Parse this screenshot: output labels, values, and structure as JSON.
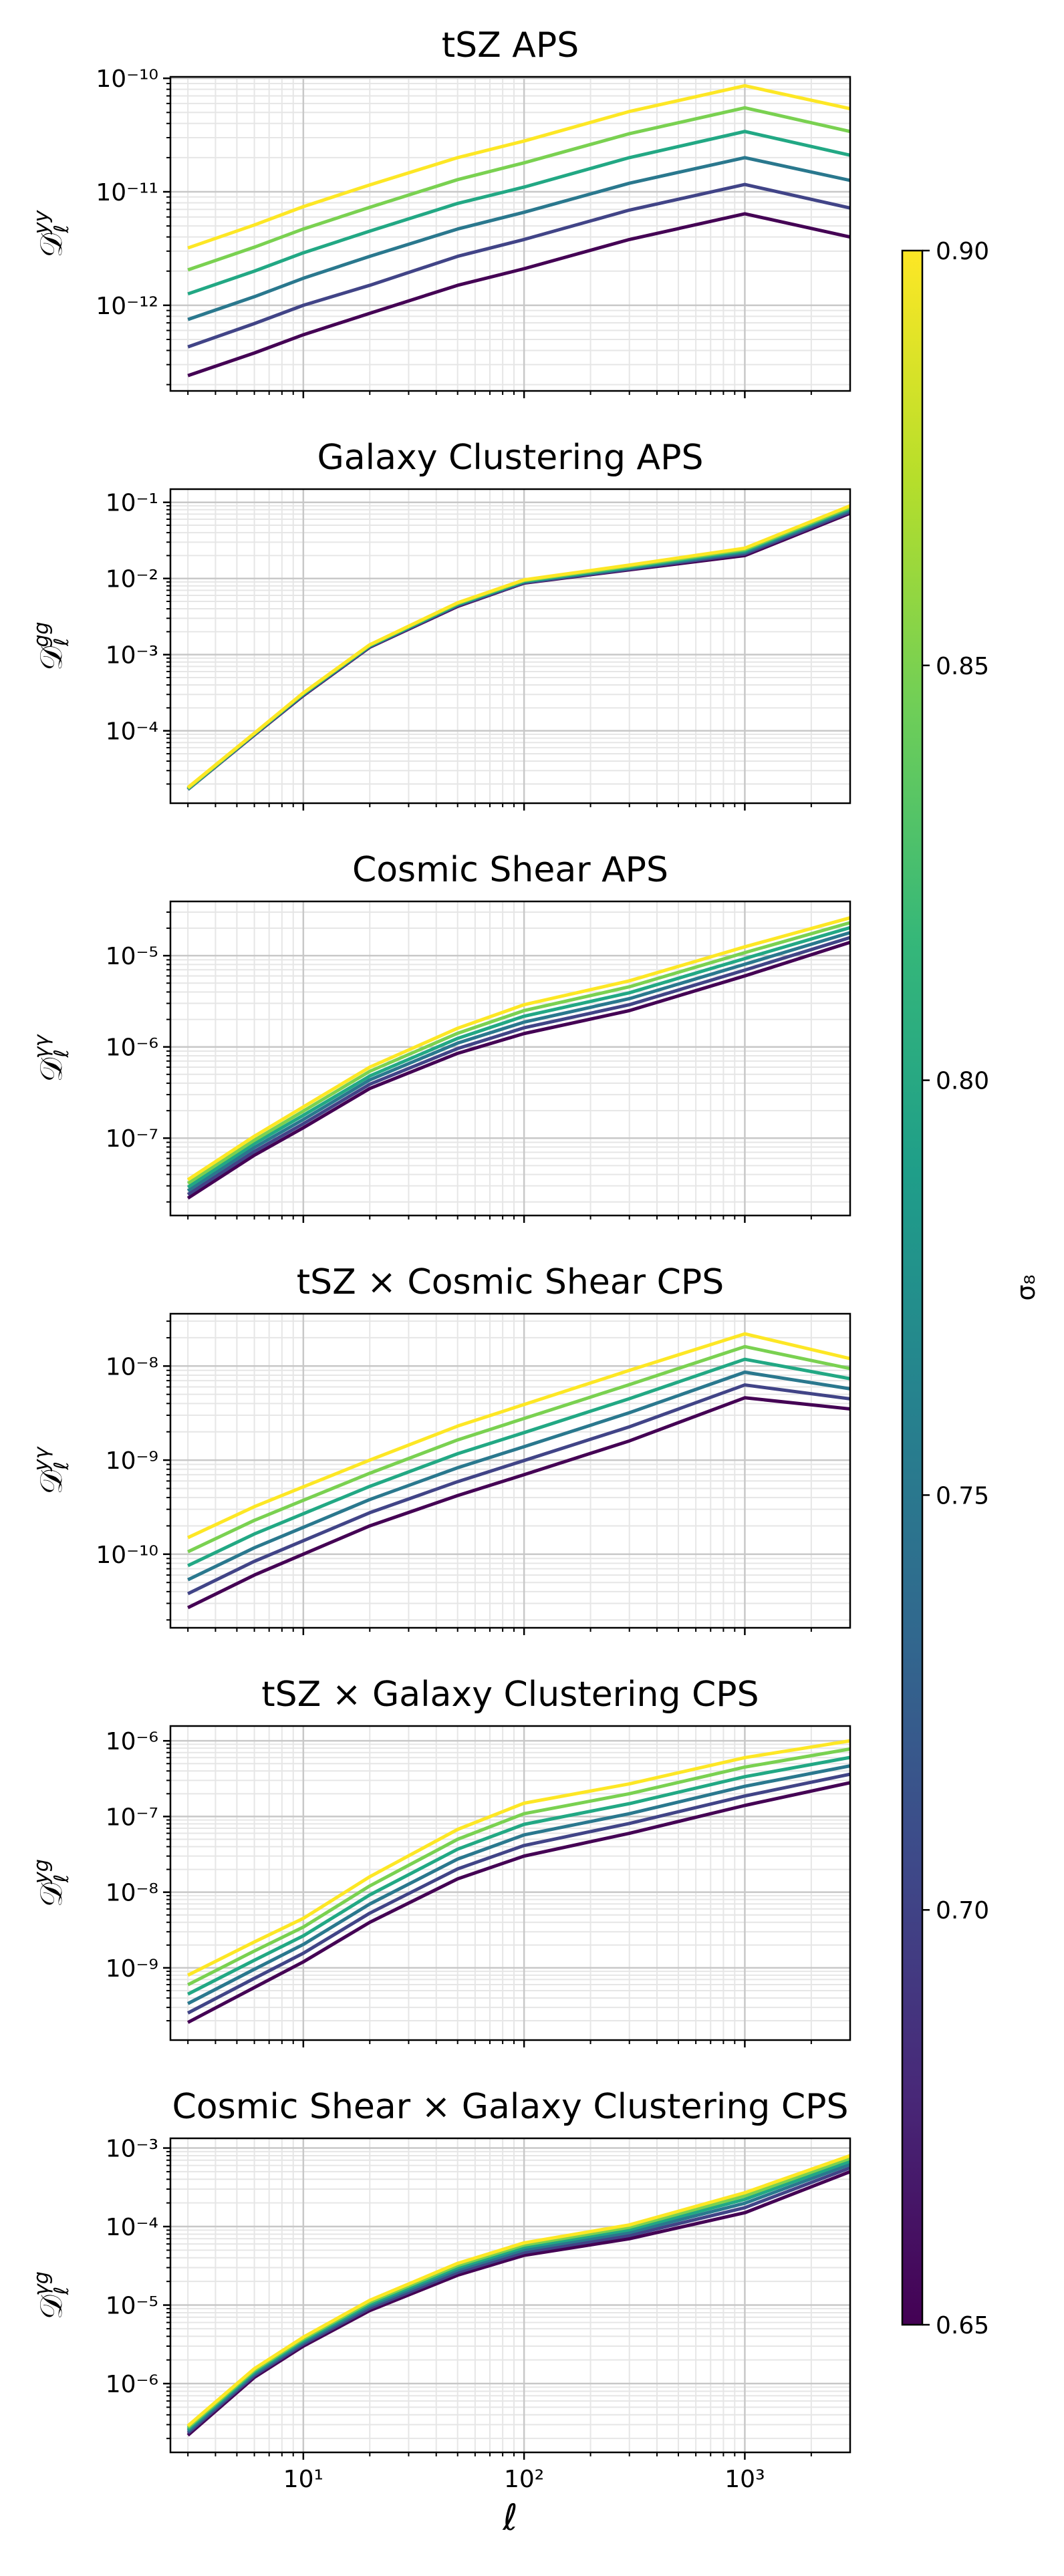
{
  "chart_data": [
    {
      "type": "line",
      "title": "tSZ APS",
      "ylabel": {
        "symbol": "𝒟",
        "sub": "ℓ",
        "sup": "yy"
      },
      "xscale": "log",
      "yscale": "log",
      "grid": true,
      "x": [
        3,
        6,
        10,
        20,
        50,
        100,
        300,
        1000,
        3000
      ],
      "xlim": [
        2.5,
        3000
      ],
      "xticks": [
        10,
        100,
        1000
      ],
      "ylim": [
        1.76e-13,
        1.03e-10
      ],
      "yticks": [
        {
          "value": 1e-12,
          "label": "10⁻¹²"
        },
        {
          "value": 1e-11,
          "label": "10⁻¹¹"
        },
        {
          "value": 1e-10,
          "label": "10⁻¹⁰"
        }
      ],
      "series": [
        {
          "color": "#440154",
          "values": [
            2.4e-13,
            3.8e-13,
            5.5e-13,
            8.5e-13,
            1.5e-12,
            2.1e-12,
            3.8e-12,
            6.4e-12,
            4e-12
          ]
        },
        {
          "color": "#414487",
          "values": [
            4.3e-13,
            6.9e-13,
            1e-12,
            1.5e-12,
            2.7e-12,
            3.8e-12,
            6.9e-12,
            1.16e-11,
            7.2e-12
          ]
        },
        {
          "color": "#2a788e",
          "values": [
            7.5e-13,
            1.19e-12,
            1.73e-12,
            2.7e-12,
            4.7e-12,
            6.6e-12,
            1.19e-11,
            2e-11,
            1.26e-11
          ]
        },
        {
          "color": "#22a884",
          "values": [
            1.26e-12,
            2e-12,
            2.9e-12,
            4.5e-12,
            7.9e-12,
            1.1e-11,
            2e-11,
            3.4e-11,
            2.1e-11
          ]
        },
        {
          "color": "#7ad151",
          "values": [
            2.05e-12,
            3.25e-12,
            4.7e-12,
            7.3e-12,
            1.28e-11,
            1.8e-11,
            3.25e-11,
            5.5e-11,
            3.4e-11
          ]
        },
        {
          "color": "#fde725",
          "values": [
            3.2e-12,
            5.1e-12,
            7.4e-12,
            1.15e-11,
            2e-11,
            2.8e-11,
            5.1e-11,
            8.6e-11,
            5.4e-11
          ]
        }
      ]
    },
    {
      "type": "line",
      "title": "Galaxy Clustering APS",
      "ylabel": {
        "symbol": "𝒟",
        "sub": "ℓ",
        "sup": "gg"
      },
      "xscale": "log",
      "yscale": "log",
      "grid": true,
      "x": [
        3,
        6,
        10,
        20,
        50,
        100,
        300,
        1000,
        3000
      ],
      "xlim": [
        2.5,
        3000
      ],
      "xticks": [
        10,
        100,
        1000
      ],
      "ylim": [
        1.12e-05,
        0.149
      ],
      "yticks": [
        {
          "value": 0.0001,
          "label": "10⁻⁴"
        },
        {
          "value": 0.001,
          "label": "10⁻³"
        },
        {
          "value": 0.01,
          "label": "10⁻²"
        },
        {
          "value": 0.1,
          "label": "10⁻¹"
        }
      ],
      "series": [
        {
          "color": "#440154",
          "values": [
            1.7e-05,
            8.8e-05,
            0.00029,
            0.00125,
            0.0043,
            0.0087,
            0.013,
            0.02,
            0.072
          ]
        },
        {
          "color": "#414487",
          "values": [
            1.7e-05,
            8.9e-05,
            0.000295,
            0.00127,
            0.0044,
            0.0088,
            0.0133,
            0.021,
            0.075
          ]
        },
        {
          "color": "#2a788e",
          "values": [
            1.7e-05,
            9e-05,
            0.0003,
            0.00129,
            0.0045,
            0.009,
            0.0136,
            0.022,
            0.079
          ]
        },
        {
          "color": "#22a884",
          "values": [
            1.75e-05,
            9.1e-05,
            0.000305,
            0.00131,
            0.0046,
            0.0092,
            0.014,
            0.023,
            0.083
          ]
        },
        {
          "color": "#7ad151",
          "values": [
            1.75e-05,
            9.2e-05,
            0.00031,
            0.00133,
            0.0047,
            0.0094,
            0.0145,
            0.024,
            0.086
          ]
        },
        {
          "color": "#fde725",
          "values": [
            1.8e-05,
            9.3e-05,
            0.000315,
            0.00135,
            0.0048,
            0.0096,
            0.015,
            0.025,
            0.09
          ]
        }
      ]
    },
    {
      "type": "line",
      "title": "Cosmic Shear APS",
      "ylabel": {
        "symbol": "𝒟",
        "sub": "ℓ",
        "sup": "γγ"
      },
      "xscale": "log",
      "yscale": "log",
      "grid": true,
      "x": [
        3,
        6,
        10,
        20,
        50,
        100,
        300,
        1000,
        3000
      ],
      "xlim": [
        2.5,
        3000
      ],
      "xticks": [
        10,
        100,
        1000
      ],
      "ylim": [
        1.42e-08,
        3.93e-05
      ],
      "yticks": [
        {
          "value": 1e-07,
          "label": "10⁻⁷"
        },
        {
          "value": 1e-06,
          "label": "10⁻⁶"
        },
        {
          "value": 1e-05,
          "label": "10⁻⁵"
        }
      ],
      "series": [
        {
          "color": "#440154",
          "values": [
            2.2e-08,
            6.5e-08,
            1.3e-07,
            3.5e-07,
            8.5e-07,
            1.4e-06,
            2.5e-06,
            6e-06,
            1.4e-05
          ]
        },
        {
          "color": "#414487",
          "values": [
            2.41e-08,
            7.15e-08,
            1.44e-07,
            3.9e-07,
            9.6e-07,
            1.62e-06,
            2.9e-06,
            6.95e-06,
            1.58e-05
          ]
        },
        {
          "color": "#2a788e",
          "values": [
            2.65e-08,
            7.9e-08,
            1.6e-07,
            4.35e-07,
            1.1e-06,
            1.87e-06,
            3.38e-06,
            8.05e-06,
            1.79e-05
          ]
        },
        {
          "color": "#22a884",
          "values": [
            2.9e-08,
            8.7e-08,
            1.78e-07,
            4.8e-07,
            1.24e-06,
            2.17e-06,
            3.92e-06,
            9.3e-06,
            2.03e-05
          ]
        },
        {
          "color": "#7ad151",
          "values": [
            3.2e-08,
            9.5e-08,
            1.98e-07,
            5.4e-07,
            1.41e-06,
            2.5e-06,
            4.56e-06,
            1.08e-05,
            2.3e-05
          ]
        },
        {
          "color": "#fde725",
          "values": [
            3.5e-08,
            1.05e-07,
            2.2e-07,
            6e-07,
            1.6e-06,
            2.9e-06,
            5.3e-06,
            1.25e-05,
            2.6e-05
          ]
        }
      ]
    },
    {
      "type": "line",
      "title": "tSZ × Cosmic Shear CPS",
      "ylabel": {
        "symbol": "𝒟",
        "sub": "ℓ",
        "sup": "yγ"
      },
      "xscale": "log",
      "yscale": "log",
      "grid": true,
      "x": [
        3,
        6,
        10,
        20,
        50,
        100,
        300,
        1000,
        3000
      ],
      "xlim": [
        2.5,
        3000
      ],
      "xticks": [
        10,
        100,
        1000
      ],
      "ylim": [
        1.65e-11,
        3.6e-08
      ],
      "yticks": [
        {
          "value": 1e-10,
          "label": "10⁻¹⁰"
        },
        {
          "value": 1e-09,
          "label": "10⁻⁹"
        },
        {
          "value": 1e-08,
          "label": "10⁻⁸"
        }
      ],
      "series": [
        {
          "color": "#440154",
          "values": [
            2.7e-11,
            6e-11,
            1e-10,
            2e-10,
            4.2e-10,
            7e-10,
            1.6e-09,
            4.6e-09,
            3.5e-09
          ]
        },
        {
          "color": "#414487",
          "values": [
            3.8e-11,
            8.4e-11,
            1.39e-10,
            2.76e-10,
            5.9e-10,
            9.9e-10,
            2.26e-09,
            6.3e-09,
            4.48e-09
          ]
        },
        {
          "color": "#2a788e",
          "values": [
            5.35e-11,
            1.17e-10,
            1.93e-10,
            3.81e-10,
            8.3e-10,
            1.39e-09,
            3.19e-09,
            8.6e-09,
            5.73e-09
          ]
        },
        {
          "color": "#22a884",
          "values": [
            7.55e-11,
            1.64e-10,
            2.69e-10,
            5.26e-10,
            1.17e-09,
            1.96e-09,
            4.5e-09,
            1.18e-08,
            7.34e-09
          ]
        },
        {
          "color": "#7ad151",
          "values": [
            1.06e-10,
            2.29e-10,
            3.74e-10,
            7.25e-10,
            1.64e-09,
            2.77e-09,
            6.35e-09,
            1.61e-08,
            9.4e-09
          ]
        },
        {
          "color": "#fde725",
          "values": [
            1.5e-10,
            3.2e-10,
            5.2e-10,
            1e-09,
            2.3e-09,
            3.9e-09,
            9e-09,
            2.2e-08,
            1.2e-08
          ]
        }
      ]
    },
    {
      "type": "line",
      "title": "tSZ × Galaxy Clustering CPS",
      "ylabel": {
        "symbol": "𝒟",
        "sub": "ℓ",
        "sup": "yg"
      },
      "xscale": "log",
      "yscale": "log",
      "grid": true,
      "x": [
        3,
        6,
        10,
        20,
        50,
        100,
        300,
        1000,
        3000
      ],
      "xlim": [
        2.5,
        3000
      ],
      "xticks": [
        10,
        100,
        1000
      ],
      "ylim": [
        1.11e-10,
        1.57e-06
      ],
      "yticks": [
        {
          "value": 1e-09,
          "label": "10⁻⁹"
        },
        {
          "value": 1e-08,
          "label": "10⁻⁸"
        },
        {
          "value": 1e-07,
          "label": "10⁻⁷"
        },
        {
          "value": 1e-06,
          "label": "10⁻⁶"
        }
      ],
      "series": [
        {
          "color": "#440154",
          "values": [
            1.9e-10,
            5.5e-10,
            1.2e-09,
            4e-09,
            1.5e-08,
            3e-08,
            6e-08,
            1.4e-07,
            2.8e-07
          ]
        },
        {
          "color": "#414487",
          "values": [
            2.53e-10,
            7.26e-10,
            1.56e-09,
            5.28e-09,
            2.03e-08,
            4.14e-08,
            8.1e-08,
            1.87e-07,
            3.62e-07
          ]
        },
        {
          "color": "#2a788e",
          "values": [
            3.37e-10,
            9.58e-10,
            2.04e-09,
            6.97e-09,
            2.74e-08,
            5.71e-08,
            1.09e-07,
            2.51e-07,
            4.67e-07
          ]
        },
        {
          "color": "#22a884",
          "values": [
            4.49e-10,
            1.26e-09,
            2.65e-09,
            9.2e-09,
            3.7e-08,
            7.88e-08,
            1.48e-07,
            3.36e-07,
            6.04e-07
          ]
        },
        {
          "color": "#7ad151",
          "values": [
            5.98e-10,
            1.67e-09,
            3.46e-09,
            1.21e-08,
            5e-08,
            1.09e-07,
            2e-07,
            4.5e-07,
            7.8e-07
          ]
        },
        {
          "color": "#fde725",
          "values": [
            8e-10,
            2.2e-09,
            4.5e-09,
            1.6e-08,
            6.75e-08,
            1.5e-07,
            2.7e-07,
            6e-07,
            1e-06
          ]
        }
      ]
    },
    {
      "type": "line",
      "title": "Cosmic Shear × Galaxy Clustering CPS",
      "ylabel": {
        "symbol": "𝒟",
        "sub": "ℓ",
        "sup": "γg"
      },
      "xlabel": "ℓ",
      "xscale": "log",
      "yscale": "log",
      "grid": true,
      "x": [
        3,
        6,
        10,
        20,
        50,
        100,
        300,
        1000,
        3000
      ],
      "xlim": [
        2.5,
        3000
      ],
      "xticks": [
        {
          "value": 10,
          "label": "10¹"
        },
        {
          "value": 100,
          "label": "10²"
        },
        {
          "value": 1000,
          "label": "10³"
        }
      ],
      "ylim": [
        1.33e-07,
        0.00133
      ],
      "yticks": [
        {
          "value": 1e-06,
          "label": "10⁻⁶"
        },
        {
          "value": 1e-05,
          "label": "10⁻⁵"
        },
        {
          "value": 0.0001,
          "label": "10⁻⁴"
        },
        {
          "value": 0.001,
          "label": "10⁻³"
        }
      ],
      "series": [
        {
          "color": "#440154",
          "values": [
            2.2e-07,
            1.2e-06,
            3e-06,
            8.5e-06,
            2.4e-05,
            4.3e-05,
            7e-05,
            0.00015,
            0.0005
          ]
        },
        {
          "color": "#414487",
          "values": [
            2.34e-07,
            1.27e-06,
            3.18e-06,
            9.1e-06,
            2.6e-05,
            4.68e-05,
            7.7e-05,
            0.000174,
            0.00056
          ]
        },
        {
          "color": "#2a788e",
          "values": [
            2.48e-07,
            1.34e-06,
            3.36e-06,
            9.7e-06,
            2.8e-05,
            5.06e-05,
            8.4e-05,
            0.000198,
            0.00062
          ]
        },
        {
          "color": "#22a884",
          "values": [
            2.62e-07,
            1.41e-06,
            3.54e-06,
            1.03e-05,
            3e-05,
            5.44e-05,
            9.1e-05,
            0.000222,
            0.00068
          ]
        },
        {
          "color": "#7ad151",
          "values": [
            2.76e-07,
            1.48e-06,
            3.72e-06,
            1.09e-05,
            3.2e-05,
            5.82e-05,
            9.8e-05,
            0.000246,
            0.00074
          ]
        },
        {
          "color": "#fde725",
          "values": [
            2.9e-07,
            1.55e-06,
            3.9e-06,
            1.15e-05,
            3.4e-05,
            6.2e-05,
            0.000105,
            0.00027,
            0.0008
          ]
        }
      ]
    },
    {
      "type": "colorbar",
      "label": "σ₈",
      "lim": [
        0.65,
        0.9
      ],
      "ticks": [
        0.65,
        {
          "value": 0.7,
          "label": "0.70"
        },
        0.75,
        {
          "value": 0.8,
          "label": "0.80"
        },
        0.85,
        {
          "value": 0.9,
          "label": "0.90"
        }
      ],
      "colors": [
        "#440154",
        "#482878",
        "#3e4989",
        "#31688e",
        "#26828e",
        "#1f9e89",
        "#35b779",
        "#6ece58",
        "#b5de2b",
        "#fde725"
      ]
    }
  ]
}
